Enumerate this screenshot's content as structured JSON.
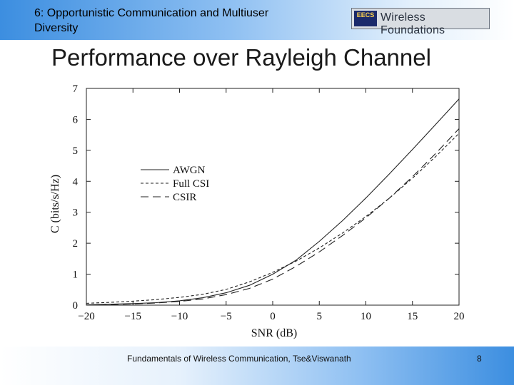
{
  "header": {
    "title_line1": "6: Opportunistic Communication and Multiuser",
    "title_line2": "Diversity",
    "logo_badge": "EECS",
    "logo_text": "Wireless Foundations"
  },
  "slide": {
    "title": "Performance over Rayleigh Channel"
  },
  "footer": {
    "text": "Fundamentals of Wireless Communication, Tse&Viswanath",
    "page_number": "8"
  },
  "colors": {
    "header_blue": "#3c8ee0",
    "line": "#222222"
  },
  "chart_data": {
    "type": "line",
    "title": "",
    "xlabel": "SNR (dB)",
    "ylabel": "C (bits/s/Hz)",
    "xlim": [
      -20,
      20
    ],
    "ylim": [
      0,
      7
    ],
    "xticks": [
      -20,
      -15,
      -10,
      -5,
      0,
      5,
      10,
      15,
      20
    ],
    "yticks": [
      0,
      1,
      2,
      3,
      4,
      5,
      6,
      7
    ],
    "xtick_labels": [
      "−20",
      "−15",
      "−10",
      "−5",
      "0",
      "5",
      "10",
      "15",
      "20"
    ],
    "ytick_labels": [
      "0",
      "1",
      "2",
      "3",
      "4",
      "5",
      "6",
      "7"
    ],
    "grid": false,
    "legend": "center-left",
    "x": [
      -20,
      -17.5,
      -15,
      -12.5,
      -10,
      -7.5,
      -5,
      -2.5,
      0,
      2.5,
      5,
      7.5,
      10,
      12.5,
      15,
      17.5,
      20
    ],
    "series": [
      {
        "name": "AWGN",
        "style": "solid",
        "values": [
          0.01,
          0.03,
          0.05,
          0.08,
          0.14,
          0.24,
          0.4,
          0.64,
          1.0,
          1.45,
          2.06,
          2.73,
          3.46,
          4.23,
          5.03,
          5.84,
          6.66
        ]
      },
      {
        "name": "Full CSI",
        "style": "short-dash",
        "values": [
          0.06,
          0.09,
          0.13,
          0.18,
          0.25,
          0.35,
          0.51,
          0.75,
          1.06,
          1.42,
          1.85,
          2.33,
          2.86,
          3.45,
          4.1,
          4.8,
          5.55
        ]
      },
      {
        "name": "CSIR",
        "style": "long-dash",
        "values": [
          0.01,
          0.02,
          0.04,
          0.07,
          0.12,
          0.2,
          0.34,
          0.54,
          0.84,
          1.25,
          1.72,
          2.25,
          2.82,
          3.45,
          4.15,
          4.9,
          5.7
        ]
      }
    ]
  }
}
